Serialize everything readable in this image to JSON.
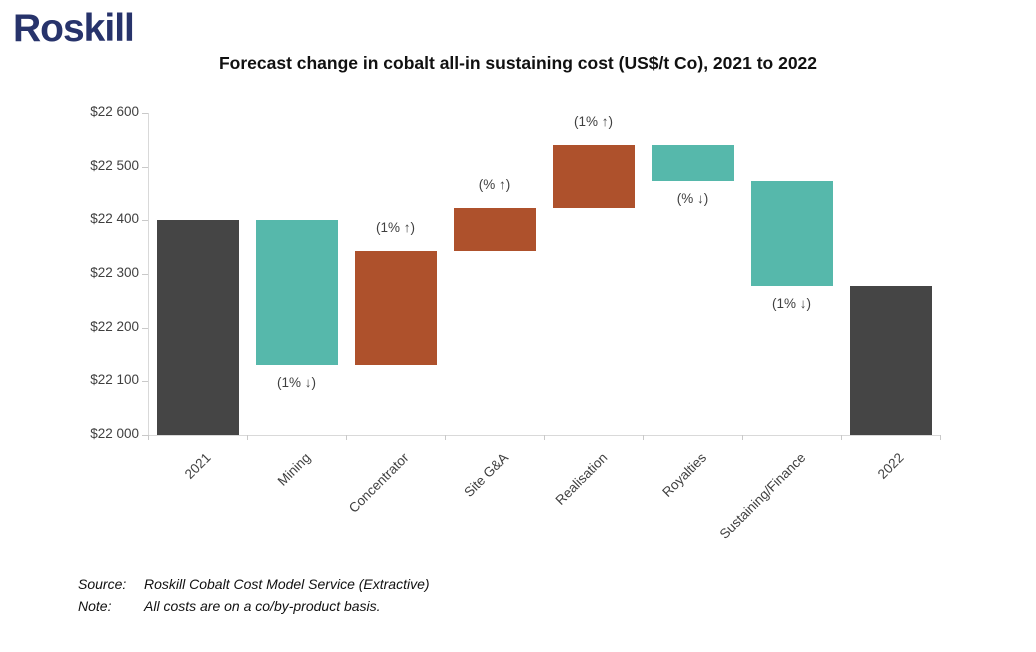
{
  "logo": {
    "text": "Roskill",
    "color": "#27336b"
  },
  "title": "Forecast change in cobalt all-in sustaining cost (US$/t Co), 2021 to 2022",
  "chart_data": {
    "type": "bar",
    "subtype": "waterfall",
    "title": "Forecast change in cobalt all-in sustaining cost (US$/t Co), 2021 to 2022",
    "xlabel": "",
    "ylabel": "",
    "ylim": [
      22000,
      22600
    ],
    "ytick_step": 100,
    "ytick_labels": [
      "$22 000",
      "$22 100",
      "$22 200",
      "$22 300",
      "$22 400",
      "$22 500",
      "$22 600"
    ],
    "grid": false,
    "legend": null,
    "categories": [
      "2021",
      "Mining",
      "Concentrator",
      "Site G&A",
      "Realisation",
      "Royalties",
      "Sustaining/Finance",
      "2022"
    ],
    "bars": [
      {
        "category": "2021",
        "from": 22000,
        "to": 22400,
        "change": 0,
        "role": "total",
        "color": "#454545",
        "label": null,
        "label_position": null
      },
      {
        "category": "Mining",
        "from": 22130,
        "to": 22400,
        "change": -270,
        "role": "decrease",
        "color": "#56b8ab",
        "label": "(1% ↓)",
        "label_position": "below"
      },
      {
        "category": "Concentrator",
        "from": 22130,
        "to": 22343,
        "change": 213,
        "role": "increase",
        "color": "#ae512c",
        "label": "(1% ↑)",
        "label_position": "above"
      },
      {
        "category": "Site G&A",
        "from": 22343,
        "to": 22423,
        "change": 80,
        "role": "increase",
        "color": "#ae512c",
        "label": "(% ↑)",
        "label_position": "above"
      },
      {
        "category": "Realisation",
        "from": 22423,
        "to": 22540,
        "change": 117,
        "role": "increase",
        "color": "#ae512c",
        "label": "(1% ↑)",
        "label_position": "above"
      },
      {
        "category": "Royalties",
        "from": 22474,
        "to": 22540,
        "change": -66,
        "role": "decrease",
        "color": "#56b8ab",
        "label": "(% ↓)",
        "label_position": "below"
      },
      {
        "category": "Sustaining/Finance",
        "from": 22278,
        "to": 22474,
        "change": -196,
        "role": "decrease",
        "color": "#56b8ab",
        "label": "(1% ↓)",
        "label_position": "below"
      },
      {
        "category": "2022",
        "from": 22000,
        "to": 22278,
        "change": 0,
        "role": "total",
        "color": "#454545",
        "label": null,
        "label_position": null
      }
    ],
    "colors": {
      "total": "#454545",
      "increase": "#ae512c",
      "decrease": "#56b8ab",
      "axis": "#d9d9d9"
    }
  },
  "footer": {
    "source_label": "Source:",
    "source_text": "Roskill Cobalt Cost Model Service (Extractive)",
    "note_label": "Note:",
    "note_text": "All costs are on a co/by-product basis."
  }
}
